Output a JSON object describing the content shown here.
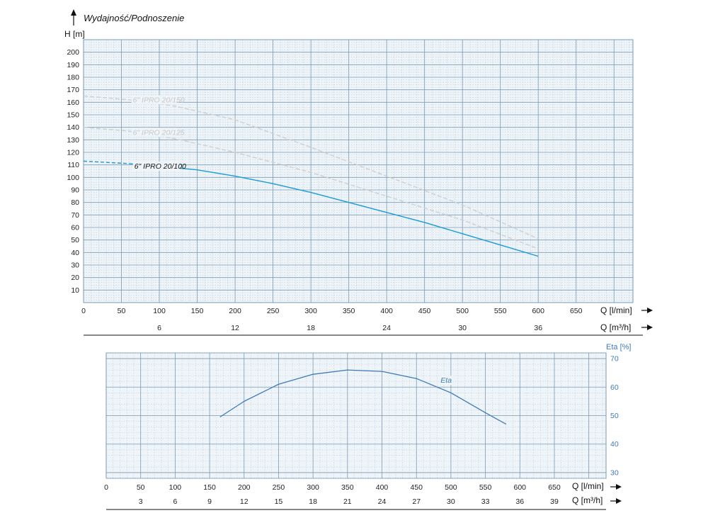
{
  "chart_data": [
    {
      "type": "line",
      "title": "Wydajność/Podnoszenie",
      "ylabel": "H [m]",
      "xlabel": "Q [l/min]",
      "xlabel2": "Q [m³/h]",
      "xlim": [
        0,
        725
      ],
      "ylim": [
        0,
        210
      ],
      "xticks": [
        0,
        50,
        100,
        150,
        200,
        250,
        300,
        350,
        400,
        450,
        500,
        550,
        600,
        650
      ],
      "yticks": [
        10,
        20,
        30,
        40,
        50,
        60,
        70,
        80,
        90,
        100,
        110,
        120,
        130,
        140,
        150,
        160,
        170,
        180,
        190,
        200
      ],
      "xticks2": [
        6,
        12,
        18,
        24,
        30,
        36
      ],
      "grid": true,
      "series": [
        {
          "name": "6\" IPRO 20/150",
          "color": "#cfcfcf",
          "dashed": true,
          "x": [
            0,
            60,
            120,
            200,
            300,
            400,
            500,
            600
          ],
          "y": [
            165,
            162,
            157,
            146,
            124,
            101,
            78,
            51
          ]
        },
        {
          "name": "6\" IPRO 20/125",
          "color": "#cfcfcf",
          "dashed": true,
          "x": [
            0,
            60,
            120,
            200,
            300,
            400,
            500,
            600
          ],
          "y": [
            140,
            137,
            131,
            120,
            104,
            85,
            66,
            43
          ]
        },
        {
          "name": "6\" IPRO 20/100",
          "color": "#1a9bd7",
          "dashed_until": 60,
          "x": [
            0,
            60,
            100,
            150,
            200,
            250,
            300,
            350,
            400,
            450,
            500,
            550,
            600
          ],
          "y": [
            113,
            111,
            109,
            106,
            101,
            95,
            88,
            80,
            72,
            64,
            55,
            46,
            37
          ]
        }
      ]
    },
    {
      "type": "line",
      "title": "",
      "ylabel": "Eta [%]",
      "xlabel": "Q [l/min]",
      "xlabel2": "Q [m³/h]",
      "xlim": [
        0,
        725
      ],
      "ylim": [
        28,
        72
      ],
      "xticks": [
        0,
        50,
        100,
        150,
        200,
        250,
        300,
        350,
        400,
        450,
        500,
        550,
        600,
        650
      ],
      "yticks": [
        30,
        40,
        50,
        60,
        70
      ],
      "xticks2": [
        3,
        6,
        9,
        12,
        15,
        18,
        21,
        24,
        27,
        30,
        33,
        36,
        39
      ],
      "grid": true,
      "series": [
        {
          "name": "Eta",
          "color": "#3f7ab8",
          "x": [
            165,
            200,
            250,
            300,
            350,
            400,
            450,
            500,
            550,
            580
          ],
          "y": [
            49.5,
            55,
            61,
            64.5,
            66,
            65.5,
            63,
            58,
            51,
            47
          ]
        }
      ]
    }
  ],
  "colors": {
    "plot_bg": "#eef4f8",
    "grid_major": "#7a9ab5",
    "grid_minor": "#b9cfdf",
    "axis_blue": "#3f7ab8"
  }
}
